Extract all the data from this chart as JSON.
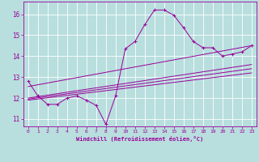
{
  "xlabel": "Windchill (Refroidissement éolien,°C)",
  "background_color": "#b8dede",
  "grid_color": "#d4eeee",
  "line_color": "#990099",
  "x_ticks": [
    0,
    1,
    2,
    3,
    4,
    5,
    6,
    7,
    8,
    9,
    10,
    11,
    12,
    13,
    14,
    15,
    16,
    17,
    18,
    19,
    20,
    21,
    22,
    23
  ],
  "y_ticks": [
    11,
    12,
    13,
    14,
    15,
    16
  ],
  "xlim": [
    -0.5,
    23.5
  ],
  "ylim": [
    10.65,
    16.6
  ],
  "curve_x": [
    0,
    1,
    2,
    3,
    4,
    5,
    6,
    7,
    8,
    9,
    10,
    11,
    12,
    13,
    14,
    15,
    16,
    17,
    18,
    19,
    20,
    21,
    22,
    23
  ],
  "curve_y": [
    12.8,
    12.1,
    11.7,
    11.7,
    12.0,
    12.1,
    11.9,
    11.65,
    10.75,
    12.1,
    14.35,
    14.7,
    15.5,
    16.2,
    16.2,
    15.95,
    15.35,
    14.7,
    14.4,
    14.4,
    14.0,
    14.1,
    14.2,
    14.5
  ],
  "line1": {
    "x": [
      0,
      23
    ],
    "y": [
      12.55,
      14.5
    ]
  },
  "line2": {
    "x": [
      0,
      23
    ],
    "y": [
      12.0,
      13.6
    ]
  },
  "line3": {
    "x": [
      0,
      23
    ],
    "y": [
      11.95,
      13.4
    ]
  },
  "line4": {
    "x": [
      0,
      23
    ],
    "y": [
      11.9,
      13.2
    ]
  }
}
